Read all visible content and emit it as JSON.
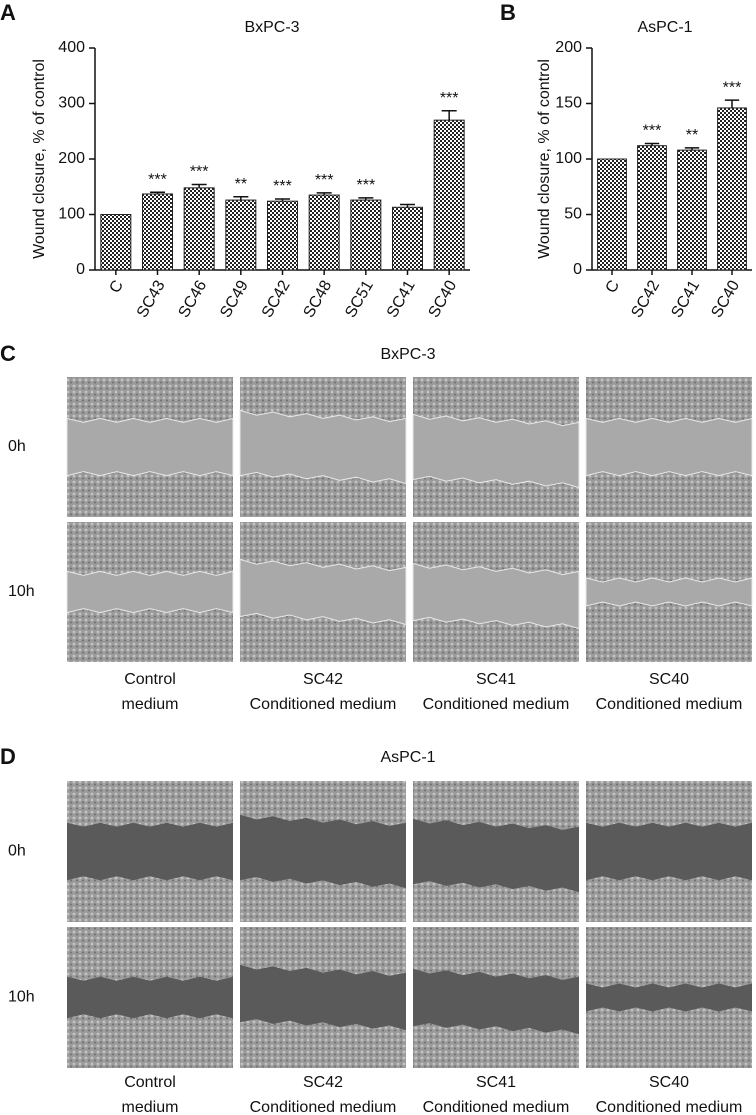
{
  "chart_data": [
    {
      "type": "bar",
      "panel": "A",
      "title": "BxPC-3",
      "ylabel": "Wound closure, % of control",
      "categories": [
        "C",
        "SC43",
        "SC46",
        "SC49",
        "SC42",
        "SC48",
        "SC51",
        "SC41",
        "SC40"
      ],
      "values": [
        100,
        137,
        148,
        126,
        124,
        135,
        126,
        113,
        270
      ],
      "errors": [
        0,
        3,
        6,
        6,
        4,
        4,
        4,
        5,
        17
      ],
      "annotations": [
        null,
        "***",
        "***",
        "**",
        "***",
        "***",
        "***",
        null,
        "***"
      ],
      "ylim": [
        0,
        400
      ],
      "yticks": [
        0,
        100,
        200,
        300,
        400
      ],
      "color": "#222222"
    },
    {
      "type": "bar",
      "panel": "B",
      "title": "AsPC-1",
      "ylabel": "Wound closure, % of control",
      "categories": [
        "C",
        "SC42",
        "SC41",
        "SC40"
      ],
      "values": [
        100,
        112,
        108,
        146
      ],
      "errors": [
        0,
        2,
        2,
        7
      ],
      "annotations": [
        null,
        "***",
        "**",
        "***"
      ],
      "ylim": [
        0,
        200
      ],
      "yticks": [
        0,
        50,
        100,
        150,
        200
      ],
      "color": "#222222"
    }
  ],
  "image_panels": [
    {
      "panel": "C",
      "title": "BxPC-3",
      "rows": [
        "0h",
        "10h"
      ],
      "columns": [
        [
          "Control",
          "medium"
        ],
        [
          "SC42",
          "Conditioned medium"
        ],
        [
          "SC41",
          "Conditioned medium"
        ],
        [
          "SC40",
          "Conditioned medium"
        ]
      ]
    },
    {
      "panel": "D",
      "title": "AsPC-1",
      "rows": [
        "0h",
        "10h"
      ],
      "columns": [
        [
          "Control",
          "medium"
        ],
        [
          "SC42",
          "Conditioned medium"
        ],
        [
          "SC41",
          "Conditioned medium"
        ],
        [
          "SC40",
          "Conditioned medium"
        ]
      ]
    }
  ]
}
